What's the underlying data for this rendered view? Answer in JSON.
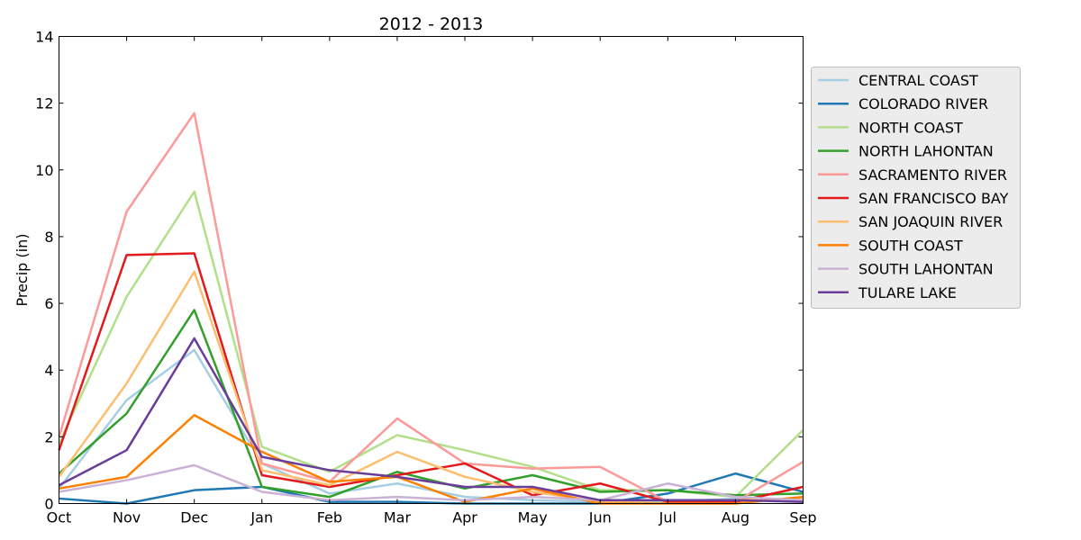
{
  "chart_data": {
    "type": "line",
    "title": "2012 - 2013",
    "xlabel": "",
    "ylabel": "Precip (in)",
    "ylim": [
      0,
      14
    ],
    "yticks": [
      "0",
      "2",
      "4",
      "6",
      "8",
      "10",
      "12",
      "14"
    ],
    "categories": [
      "Oct",
      "Nov",
      "Dec",
      "Jan",
      "Feb",
      "Mar",
      "Apr",
      "May",
      "Jun",
      "Jul",
      "Aug",
      "Sep"
    ],
    "grid": false,
    "legend_position": "right",
    "series": [
      {
        "name": "CENTRAL COAST",
        "color": "#a6cee3",
        "values": [
          0.45,
          3.1,
          4.6,
          1.2,
          0.3,
          0.6,
          0.2,
          0.1,
          0.05,
          0.05,
          0.15,
          0.05
        ]
      },
      {
        "name": "COLORADO RIVER",
        "color": "#1f78b4",
        "values": [
          0.15,
          0.0,
          0.4,
          0.5,
          0.05,
          0.05,
          0.0,
          0.0,
          0.0,
          0.3,
          0.9,
          0.35
        ]
      },
      {
        "name": "NORTH COAST",
        "color": "#b2df8a",
        "values": [
          1.8,
          6.2,
          9.35,
          1.7,
          0.95,
          2.05,
          1.6,
          1.1,
          0.4,
          0.4,
          0.2,
          2.2
        ]
      },
      {
        "name": "NORTH LAHONTAN",
        "color": "#33a02c",
        "values": [
          0.9,
          2.7,
          5.8,
          0.5,
          0.2,
          0.95,
          0.45,
          0.85,
          0.35,
          0.4,
          0.25,
          0.3
        ]
      },
      {
        "name": "SACRAMENTO RIVER",
        "color": "#fb9a99",
        "values": [
          2.0,
          8.75,
          11.7,
          1.2,
          0.65,
          2.55,
          1.2,
          1.05,
          1.1,
          0.05,
          0.05,
          1.25
        ]
      },
      {
        "name": "SAN FRANCISCO BAY",
        "color": "#e31a1c",
        "values": [
          1.6,
          7.45,
          7.5,
          0.85,
          0.5,
          0.85,
          1.2,
          0.25,
          0.6,
          0.05,
          0.05,
          0.5
        ]
      },
      {
        "name": "SAN JOAQUIN RIVER",
        "color": "#fdbf6f",
        "values": [
          0.8,
          3.6,
          6.95,
          1.0,
          0.55,
          1.55,
          0.8,
          0.35,
          0.05,
          0.1,
          0.1,
          0.15
        ]
      },
      {
        "name": "SOUTH COAST",
        "color": "#ff7f00",
        "values": [
          0.45,
          0.8,
          2.65,
          1.55,
          0.65,
          0.8,
          0.05,
          0.45,
          0.0,
          0.0,
          0.0,
          0.2
        ]
      },
      {
        "name": "SOUTH LAHONTAN",
        "color": "#cab2d6",
        "values": [
          0.35,
          0.7,
          1.15,
          0.35,
          0.1,
          0.2,
          0.1,
          0.2,
          0.1,
          0.6,
          0.2,
          0.1
        ]
      },
      {
        "name": "TULARE LAKE",
        "color": "#6a3d9a",
        "values": [
          0.55,
          1.6,
          4.95,
          1.4,
          1.0,
          0.8,
          0.5,
          0.5,
          0.1,
          0.1,
          0.1,
          0.05
        ]
      }
    ]
  }
}
